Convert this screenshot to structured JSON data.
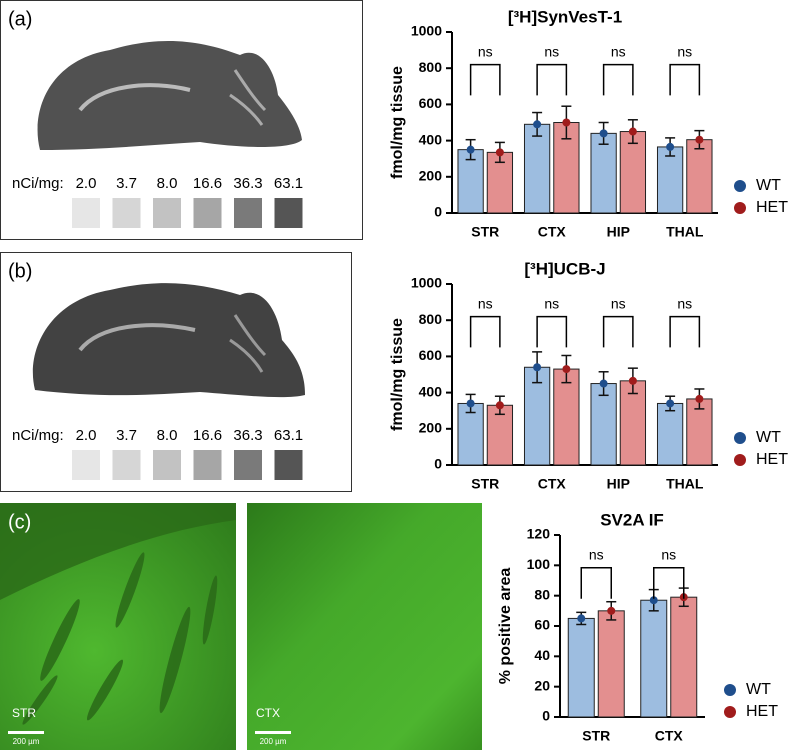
{
  "panel_labels": [
    "(a)",
    "(b)",
    "(c)"
  ],
  "autoradiographs": [
    {
      "standards_label": "nCi/mg:",
      "standards": [
        "2.0",
        "3.7",
        "8.0",
        "16.6",
        "36.3",
        "63.1"
      ]
    },
    {
      "standards_label": "nCi/mg:",
      "standards": [
        "2.0",
        "3.7",
        "8.0",
        "16.6",
        "36.3",
        "63.1"
      ]
    }
  ],
  "micrographs": [
    {
      "label": "STR",
      "scale_bar": "200 µm"
    },
    {
      "label": "CTX",
      "scale_bar": "200 µm"
    }
  ],
  "chart_data": [
    {
      "type": "bar",
      "title": "[³H]SynVesT-1",
      "y_label": "fmol/mg tissue",
      "categories": [
        "STR",
        "CTX",
        "HIP",
        "THAL"
      ],
      "series": [
        {
          "name": "WT",
          "color": "#1f4e8c",
          "bar_color": "#9dbde0",
          "values": [
            350,
            490,
            440,
            365
          ],
          "errors": [
            55,
            65,
            60,
            50
          ]
        },
        {
          "name": "HET",
          "color": "#a01c1c",
          "bar_color": "#e38f8f",
          "values": [
            335,
            500,
            450,
            405
          ],
          "errors": [
            55,
            90,
            65,
            50
          ]
        }
      ],
      "annotations": [
        "ns",
        "ns",
        "ns",
        "ns"
      ],
      "ylim": [
        0,
        1000
      ],
      "yticks": [
        0,
        200,
        400,
        600,
        800,
        1000
      ]
    },
    {
      "type": "bar",
      "title": "[³H]UCB-J",
      "y_label": "fmol/mg tissue",
      "categories": [
        "STR",
        "CTX",
        "HIP",
        "THAL"
      ],
      "series": [
        {
          "name": "WT",
          "color": "#1f4e8c",
          "bar_color": "#9dbde0",
          "values": [
            340,
            540,
            450,
            340
          ],
          "errors": [
            50,
            85,
            65,
            40
          ]
        },
        {
          "name": "HET",
          "color": "#a01c1c",
          "bar_color": "#e38f8f",
          "values": [
            330,
            530,
            465,
            365
          ],
          "errors": [
            50,
            75,
            70,
            55
          ]
        }
      ],
      "annotations": [
        "ns",
        "ns",
        "ns",
        "ns"
      ],
      "ylim": [
        0,
        1000
      ],
      "yticks": [
        0,
        200,
        400,
        600,
        800,
        1000
      ]
    },
    {
      "type": "bar",
      "title": "SV2A IF",
      "y_label": "% positive area",
      "categories": [
        "STR",
        "CTX"
      ],
      "series": [
        {
          "name": "WT",
          "color": "#1f4e8c",
          "bar_color": "#9dbde0",
          "values": [
            65,
            77
          ],
          "errors": [
            4,
            7
          ]
        },
        {
          "name": "HET",
          "color": "#a01c1c",
          "bar_color": "#e38f8f",
          "values": [
            70,
            79
          ],
          "errors": [
            6,
            6
          ]
        }
      ],
      "annotations": [
        "ns",
        "ns"
      ],
      "ylim": [
        0,
        120
      ],
      "yticks": [
        0,
        20,
        40,
        60,
        80,
        100,
        120
      ]
    }
  ]
}
